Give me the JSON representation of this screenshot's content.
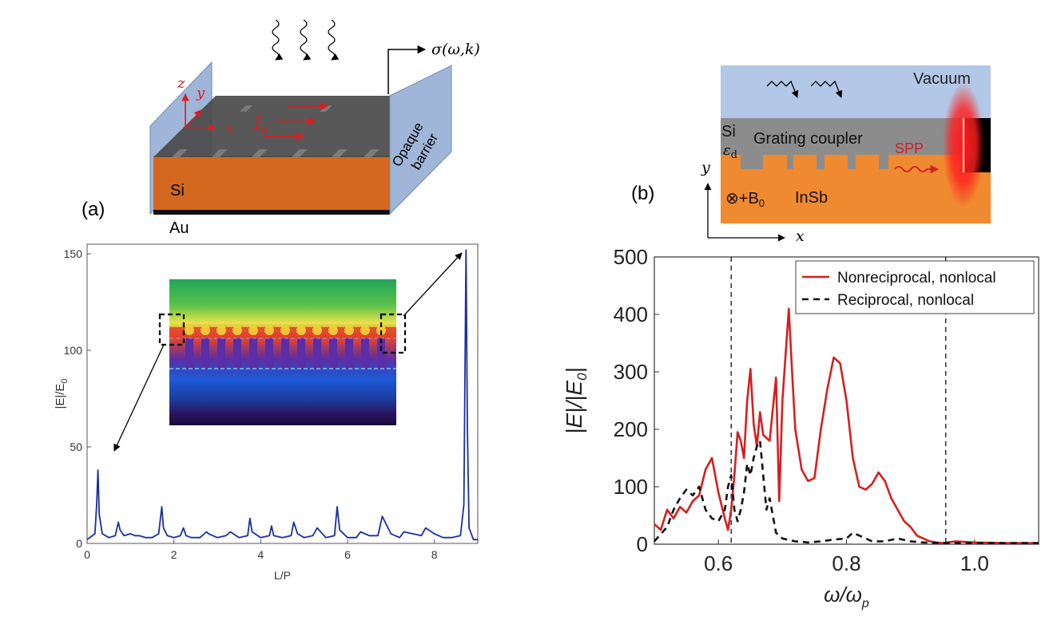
{
  "panel_a": {
    "label": "(a)",
    "schematic": {
      "layer_si": "Si",
      "layer_au": "Au",
      "barrier_label_line1": "Opaque",
      "barrier_label_line2": "barrier",
      "axis_z": "z",
      "axis_y": "y",
      "axis_x": "x",
      "current_label": "I",
      "current_sub": "0",
      "sigma_label": "σ(ω,k)"
    }
  },
  "panel_b": {
    "label": "(b)",
    "schematic": {
      "vacuum": "Vacuum",
      "si": "Si",
      "eps": "ε",
      "eps_sub": "d",
      "grating": "Grating coupler",
      "spp": "SPP",
      "field": "⊗+B",
      "field_sub": "0",
      "insb": "InSb",
      "axis_y": "y",
      "axis_x": "x"
    }
  },
  "chart_data": [
    {
      "type": "line",
      "xlabel": "L/P",
      "ylabel": "|E|/E",
      "ylabel_sub": "0",
      "xlim": [
        0,
        9
      ],
      "ylim": [
        0,
        155
      ],
      "xticks": [
        0,
        2,
        4,
        6,
        8
      ],
      "yticks": [
        0,
        50,
        100,
        150
      ],
      "color": "#1a2fa0",
      "series": [
        {
          "x": [
            0,
            0.18,
            0.22,
            0.25,
            0.28,
            0.35,
            0.5,
            0.65,
            0.72,
            0.76,
            0.85,
            1.0,
            1.1,
            1.2,
            1.35,
            1.5,
            1.65,
            1.72,
            1.76,
            1.85,
            2.0,
            2.15,
            2.22,
            2.28,
            2.4,
            2.6,
            2.75,
            2.8,
            3.0,
            3.2,
            3.3,
            3.5,
            3.7,
            3.75,
            3.8,
            4.0,
            4.2,
            4.25,
            4.3,
            4.5,
            4.7,
            4.76,
            4.85,
            5.0,
            5.2,
            5.3,
            5.5,
            5.7,
            5.76,
            5.82,
            6.0,
            6.2,
            6.3,
            6.5,
            6.7,
            6.8,
            7.0,
            7.2,
            7.3,
            7.5,
            7.7,
            7.8,
            8.0,
            8.2,
            8.4,
            8.6,
            8.68,
            8.73,
            8.76,
            8.8,
            8.9,
            9.0
          ],
          "y": [
            2,
            5,
            20,
            38,
            15,
            5,
            3,
            4,
            11,
            7,
            4,
            5,
            4,
            4,
            3,
            3,
            5,
            19,
            8,
            4,
            3,
            4,
            8,
            4,
            3,
            3,
            6,
            5,
            3,
            4,
            6,
            3,
            4,
            13,
            6,
            3,
            4,
            9,
            4,
            3,
            4,
            11,
            5,
            3,
            4,
            8,
            3,
            4,
            19,
            7,
            3,
            3,
            6,
            4,
            4,
            14,
            5,
            3,
            6,
            5,
            4,
            8,
            5,
            3,
            3,
            4,
            20,
            152,
            60,
            8,
            2,
            2
          ]
        }
      ]
    },
    {
      "type": "line",
      "xlabel": "ω/ω",
      "xlabel_sub": "p",
      "ylabel": "|E|/|E",
      "ylabel_sub": "0",
      "ylabel_tail": "|",
      "xlim": [
        0.5,
        1.1
      ],
      "ylim": [
        0,
        500
      ],
      "xticks": [
        0.6,
        0.8,
        1.0
      ],
      "xtick_labels": [
        "0.6",
        "0.8",
        "1.0"
      ],
      "yticks": [
        0,
        100,
        200,
        300,
        400,
        500
      ],
      "vlines": [
        0.62,
        0.955
      ],
      "legend": {
        "position": "top-right",
        "entries": [
          "Nonreciprocal, nonlocal",
          "Reciprocal, nonlocal"
        ]
      },
      "series": [
        {
          "name": "Nonreciprocal, nonlocal",
          "color": "#d42020",
          "dash": "solid",
          "x": [
            0.5,
            0.51,
            0.52,
            0.53,
            0.54,
            0.55,
            0.56,
            0.57,
            0.58,
            0.59,
            0.6,
            0.61,
            0.615,
            0.62,
            0.625,
            0.63,
            0.635,
            0.64,
            0.645,
            0.65,
            0.655,
            0.66,
            0.665,
            0.67,
            0.68,
            0.69,
            0.695,
            0.7,
            0.705,
            0.71,
            0.715,
            0.72,
            0.73,
            0.74,
            0.75,
            0.76,
            0.77,
            0.78,
            0.79,
            0.8,
            0.81,
            0.82,
            0.83,
            0.84,
            0.85,
            0.86,
            0.87,
            0.88,
            0.89,
            0.9,
            0.91,
            0.92,
            0.93,
            0.94,
            0.95,
            0.97,
            1.0,
            1.05,
            1.1
          ],
          "y": [
            35,
            25,
            60,
            45,
            65,
            55,
            75,
            85,
            130,
            150,
            90,
            45,
            25,
            60,
            120,
            195,
            180,
            150,
            250,
            305,
            210,
            170,
            230,
            190,
            180,
            290,
            75,
            250,
            330,
            410,
            300,
            200,
            130,
            110,
            115,
            200,
            270,
            325,
            315,
            250,
            150,
            100,
            95,
            105,
            125,
            110,
            80,
            60,
            40,
            30,
            15,
            10,
            5,
            3,
            2,
            5,
            3,
            2,
            2
          ]
        },
        {
          "name": "Reciprocal, nonlocal",
          "color": "#111111",
          "dash": "dashed",
          "x": [
            0.5,
            0.52,
            0.53,
            0.54,
            0.55,
            0.56,
            0.57,
            0.58,
            0.59,
            0.6,
            0.61,
            0.615,
            0.62,
            0.625,
            0.63,
            0.635,
            0.64,
            0.645,
            0.65,
            0.655,
            0.66,
            0.665,
            0.67,
            0.675,
            0.68,
            0.69,
            0.7,
            0.72,
            0.74,
            0.76,
            0.78,
            0.8,
            0.81,
            0.82,
            0.84,
            0.86,
            0.88,
            0.9,
            0.92,
            0.95,
            1.0,
            1.05,
            1.1
          ],
          "y": [
            5,
            30,
            60,
            80,
            95,
            85,
            100,
            60,
            45,
            40,
            60,
            100,
            120,
            60,
            40,
            60,
            90,
            140,
            120,
            150,
            170,
            180,
            120,
            60,
            80,
            20,
            10,
            5,
            3,
            5,
            8,
            10,
            20,
            15,
            5,
            5,
            10,
            5,
            3,
            2,
            2,
            2,
            2
          ]
        }
      ]
    }
  ]
}
